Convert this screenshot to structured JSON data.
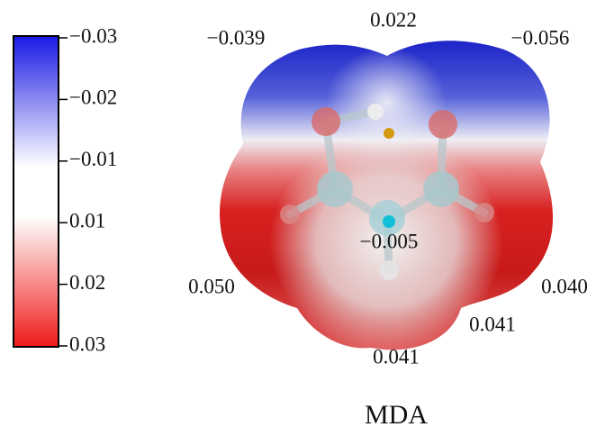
{
  "colorbar": {
    "ticks": [
      "−0.03",
      "−0.02",
      "−0.01",
      "0.01",
      "0.02",
      "0.03"
    ]
  },
  "annotations": [
    "0.022",
    "−0.039",
    "−0.056",
    "−0.005",
    "0.050",
    "0.040",
    "0.041",
    "0.041"
  ],
  "caption": "MDA"
}
